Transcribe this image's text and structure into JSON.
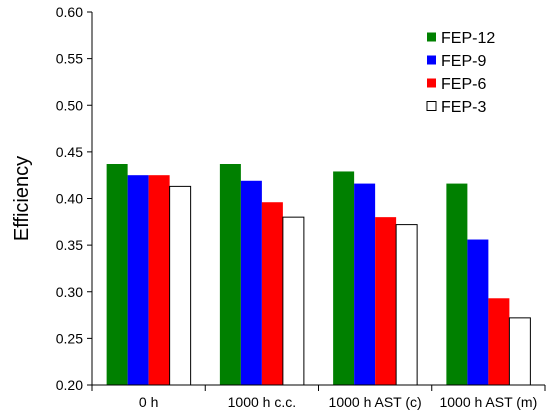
{
  "chart_data": {
    "type": "bar",
    "title": "",
    "xlabel": "",
    "ylabel": "Efficiency",
    "ylim": [
      0.2,
      0.6
    ],
    "yticks": [
      "0.20",
      "0.25",
      "0.30",
      "0.35",
      "0.40",
      "0.45",
      "0.50",
      "0.55",
      "0.60"
    ],
    "categories": [
      "0 h",
      "1000 h c.c.",
      "1000 h AST (c)",
      "1000 h AST (m)"
    ],
    "grid": false,
    "legend_position": "top-right",
    "series": [
      {
        "name": "FEP-12",
        "color": "#008000",
        "values": [
          0.437,
          0.437,
          0.429,
          0.416
        ]
      },
      {
        "name": "FEP-9",
        "color": "#0000FF",
        "values": [
          0.425,
          0.419,
          0.416,
          0.356
        ]
      },
      {
        "name": "FEP-6",
        "color": "#FF0000",
        "values": [
          0.425,
          0.396,
          0.38,
          0.293
        ]
      },
      {
        "name": "FEP-3",
        "color": "#FFFFFF",
        "values": [
          0.413,
          0.38,
          0.372,
          0.272
        ]
      }
    ]
  }
}
